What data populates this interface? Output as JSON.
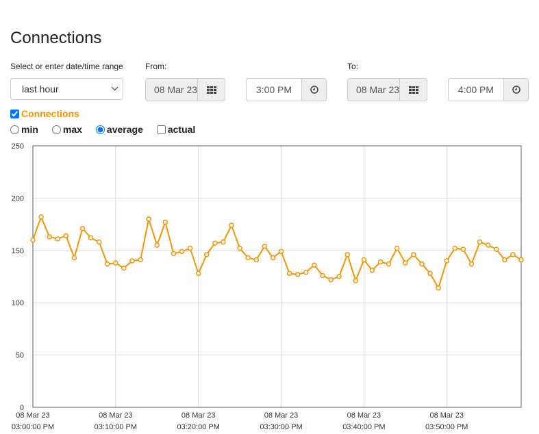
{
  "page_title": "Connections",
  "range": {
    "label": "Select or enter date/time range",
    "selected": "last hour"
  },
  "from": {
    "label": "From:",
    "date": "08 Mar 23",
    "time": "3:00 PM"
  },
  "to": {
    "label": "To:",
    "date": "08 Mar 23",
    "time": "4:00 PM"
  },
  "icons": {
    "calendar": "calendar-grid-icon",
    "clock": "clock-icon"
  },
  "series_toggle": {
    "label": "Connections",
    "checked": true,
    "color": "#f79400"
  },
  "stat_options": {
    "min": "min",
    "max": "max",
    "average": "average",
    "actual": "actual",
    "selected": "average",
    "actual_checked": false
  },
  "chart_data": {
    "type": "line",
    "series_color": "#f79400",
    "ylim": [
      0,
      250
    ],
    "yticks": [
      "0",
      "50",
      "100",
      "150",
      "200",
      "250"
    ],
    "xlim_minutes": [
      0,
      59
    ],
    "xticks": [
      {
        "date": "08 Mar 23",
        "time": "03:00:00 PM"
      },
      {
        "date": "08 Mar 23",
        "time": "03:10:00 PM"
      },
      {
        "date": "08 Mar 23",
        "time": "03:20:00 PM"
      },
      {
        "date": "08 Mar 23",
        "time": "03:30:00 PM"
      },
      {
        "date": "08 Mar 23",
        "time": "03:40:00 PM"
      },
      {
        "date": "08 Mar 23",
        "time": "03:50:00 PM"
      }
    ],
    "grid": true,
    "x_interval_minutes": 1,
    "values": [
      160,
      182,
      163,
      161,
      164,
      143,
      171,
      162,
      158,
      137,
      138,
      133,
      140,
      141,
      180,
      155,
      177,
      147,
      149,
      152,
      128,
      146,
      157,
      158,
      174,
      152,
      143,
      141,
      154,
      143,
      149,
      128,
      127,
      129,
      136,
      126,
      122,
      125,
      146,
      121,
      141,
      131,
      139,
      137,
      152,
      138,
      146,
      137,
      128,
      114,
      140,
      152,
      151,
      137,
      158,
      155,
      151,
      141,
      146,
      141
    ]
  }
}
